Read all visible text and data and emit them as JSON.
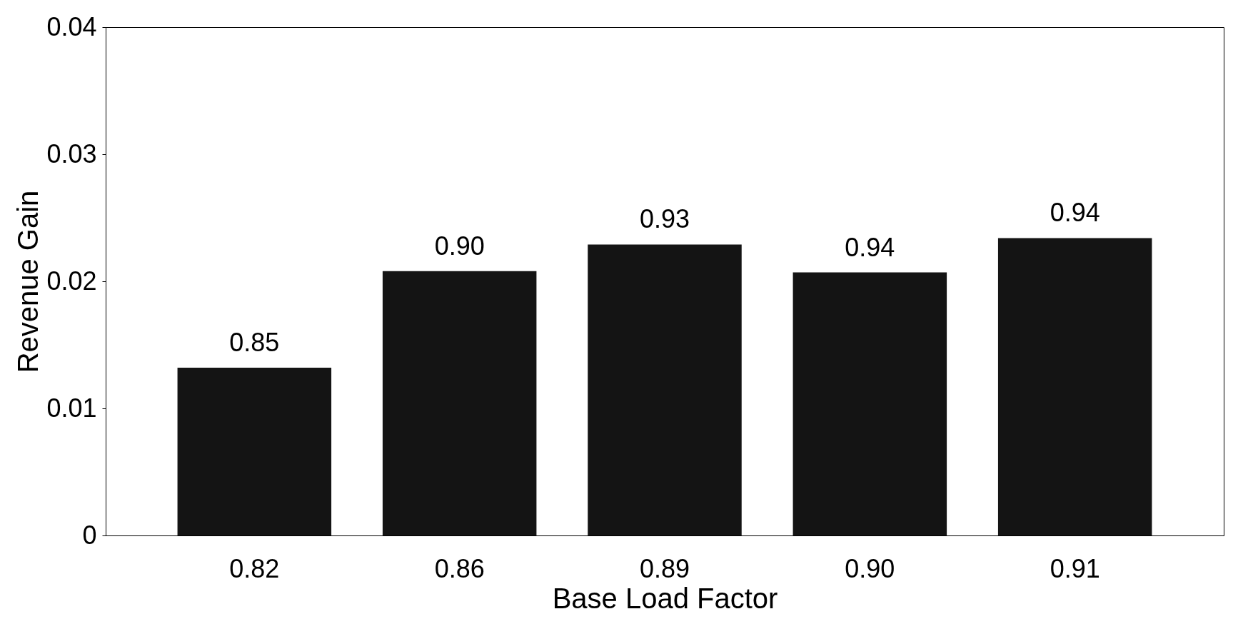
{
  "chart_data": {
    "type": "bar",
    "xlabel": "Base Load Factor",
    "ylabel": "Revenue Gain",
    "categories": [
      "0.82",
      "0.86",
      "0.89",
      "0.90",
      "0.91"
    ],
    "values": [
      0.0132,
      0.0208,
      0.0229,
      0.0207,
      0.0234
    ],
    "annotations": [
      {
        "text": "0.85",
        "x": "0.82",
        "y": 0.0132
      },
      {
        "text": "0.90",
        "x": "0.86",
        "y": 0.0208
      },
      {
        "text": "0.93",
        "x": "0.89",
        "y": 0.0229
      },
      {
        "text": "0.94",
        "x": "0.90",
        "y": 0.0207
      },
      {
        "text": "0.94",
        "x": "0.91",
        "y": 0.0234
      }
    ],
    "color": "#141414",
    "ylim": [
      0,
      0.04
    ],
    "yticks": [
      0,
      0.01,
      0.02,
      0.03,
      0.04
    ],
    "grid": false
  }
}
